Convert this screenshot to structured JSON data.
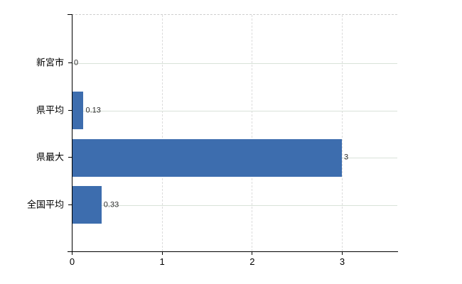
{
  "chart_data": {
    "type": "bar",
    "orientation": "horizontal",
    "title": "",
    "xlabel": "",
    "ylabel": "",
    "categories": [
      "新宮市",
      "県平均",
      "県最大",
      "全国平均"
    ],
    "values": [
      0,
      0.13,
      3,
      0.33
    ],
    "value_labels": [
      "0",
      "0.13",
      "3",
      "0.33"
    ],
    "x_ticks": [
      0,
      1,
      2,
      3
    ],
    "x_tick_labels": [
      "0",
      "1",
      "2",
      "3"
    ],
    "xlim": [
      0,
      3.62
    ],
    "grid": true,
    "legend": "none",
    "colors": {
      "bar_fill": "#3d6dae",
      "horizontal_gridline": "#d9e2d9",
      "vertical_gridline": "#dcdcdc",
      "axis": "#000000",
      "text": "#000000",
      "plot_top_border": "#cfcfcf",
      "background": "#ffffff"
    }
  }
}
